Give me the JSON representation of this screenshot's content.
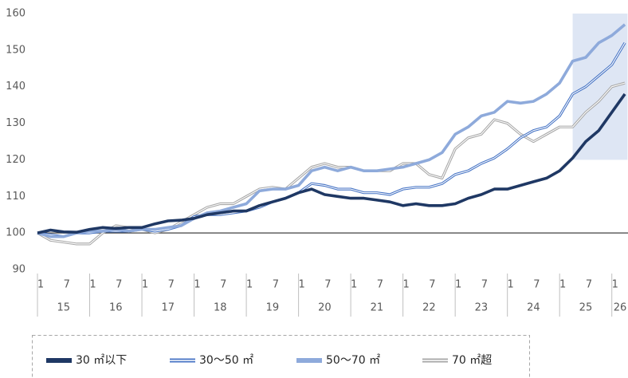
{
  "chart_data": {
    "type": "line",
    "categories": [
      "1",
      null,
      "7",
      null,
      "1",
      null,
      "7",
      null,
      "1",
      null,
      "7",
      null,
      "1",
      null,
      "7",
      null,
      "1",
      null,
      "7",
      null,
      "1",
      null,
      "7",
      null,
      "1",
      null,
      "7",
      null,
      "1",
      null,
      "7",
      null,
      "1",
      null,
      "7",
      null,
      "1",
      null,
      "7",
      null,
      "1",
      null,
      "7",
      null,
      "1",
      null
    ],
    "year_labels": [
      "15",
      "16",
      "17",
      "18",
      "19",
      "20",
      "21",
      "22",
      "23",
      "24",
      "25",
      "26"
    ],
    "series": [
      {
        "name": "30 ㎡以下",
        "color": "#1f3864",
        "style": "solid",
        "values": [
          100,
          100.8,
          100.3,
          100.2,
          101,
          101.5,
          101.2,
          101.5,
          101.5,
          102.5,
          103.3,
          103.5,
          104,
          105,
          105.5,
          106,
          106,
          107.5,
          108.5,
          109.5,
          111,
          112,
          110.5,
          110,
          109.5,
          109.5,
          109,
          108.5,
          107.5,
          108,
          107.5,
          107.5,
          108,
          109.5,
          110.5,
          112,
          112,
          113,
          114,
          115,
          117,
          120.5,
          125,
          128,
          133,
          138
        ]
      },
      {
        "name": "30〜50 ㎡",
        "color": "#4472c4",
        "style": "double",
        "values": [
          100,
          99.5,
          99,
          100,
          100,
          100.5,
          100.5,
          100.5,
          101,
          100.5,
          101,
          102,
          104.5,
          105,
          105,
          105.5,
          106,
          107,
          108.5,
          109.5,
          111,
          113.5,
          113,
          112,
          112,
          111,
          111,
          110.5,
          112,
          112.5,
          112.5,
          113.5,
          116,
          117,
          119,
          120.5,
          123,
          126,
          128,
          129,
          132,
          138,
          140,
          143,
          146,
          152
        ]
      },
      {
        "name": "50〜70 ㎡",
        "color": "#8eaadb",
        "style": "solid",
        "values": [
          100,
          99,
          99,
          100,
          100.5,
          100.5,
          101,
          100.5,
          101,
          101,
          101.5,
          102,
          104,
          105.5,
          106,
          107,
          108,
          111.5,
          112,
          112,
          113,
          117,
          118,
          117,
          118,
          117,
          117,
          117.5,
          118,
          119,
          120,
          122,
          127,
          129,
          132,
          133,
          136,
          135.5,
          136,
          138,
          141,
          147,
          148,
          152,
          154,
          157
        ]
      },
      {
        "name": "70 ㎡超",
        "color": "#a6a6a6",
        "style": "double",
        "values": [
          100,
          98,
          97.5,
          97,
          97,
          100,
          102,
          101.5,
          101,
          100,
          101,
          103,
          105,
          107,
          108,
          108,
          110,
          112,
          112.5,
          112,
          115,
          118,
          119,
          118,
          118,
          117,
          117,
          117,
          119,
          119,
          116,
          115,
          123,
          126,
          127,
          131,
          130,
          127,
          125,
          127,
          129,
          129,
          133,
          136,
          140,
          141
        ]
      }
    ],
    "ylim": [
      90,
      160
    ],
    "yticks": [
      90,
      100,
      110,
      120,
      130,
      140,
      150,
      160
    ],
    "reference_line": 100,
    "shaded_region": {
      "x": [
        41,
        45
      ],
      "y": [
        120,
        160
      ],
      "color": "#dae3f3"
    },
    "legend": "bottom"
  }
}
